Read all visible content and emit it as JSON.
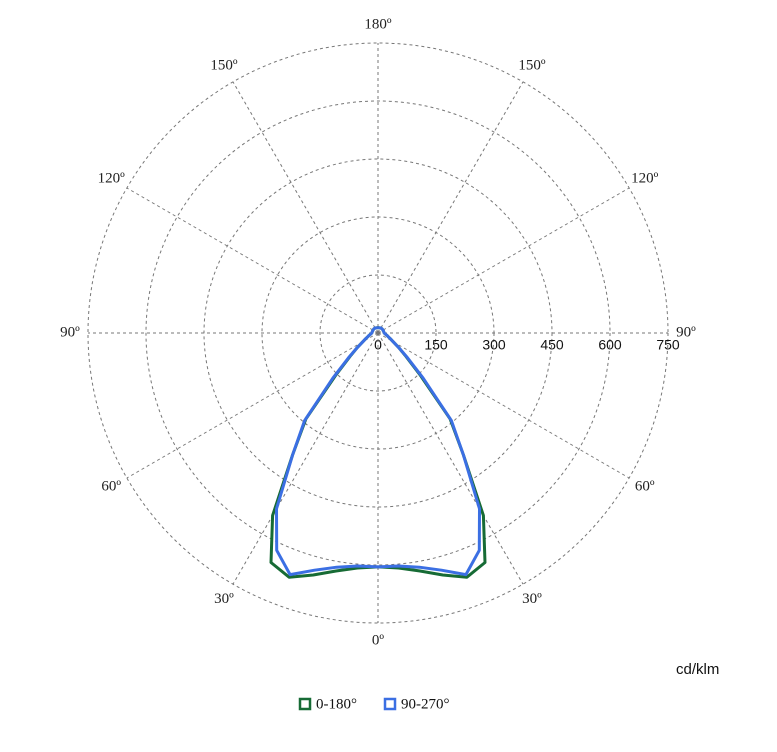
{
  "chart_data": {
    "type": "polar",
    "unit_label": "cd/klm",
    "angles": [
      0,
      5,
      10,
      15,
      20,
      25,
      30,
      35,
      40,
      45,
      50,
      55,
      60,
      65,
      70,
      75,
      80,
      85,
      90,
      105,
      120,
      135,
      150,
      165,
      180
    ],
    "series": [
      {
        "name": "0-180°",
        "color": "#176b35",
        "values": [
          605,
          610,
          625,
          648,
          672,
          655,
          545,
          385,
          290,
          155,
          95,
          65,
          45,
          35,
          28,
          24,
          20,
          18,
          16,
          15,
          15,
          15,
          15,
          14,
          14
        ]
      },
      {
        "name": "90-270°",
        "color": "#3b6fe3",
        "values": [
          605,
          605,
          615,
          635,
          665,
          620,
          525,
          385,
          295,
          165,
          100,
          65,
          45,
          35,
          28,
          24,
          20,
          18,
          16,
          15,
          15,
          15,
          15,
          14,
          14
        ]
      }
    ],
    "rlim": [
      0,
      750
    ],
    "rticks": [
      0,
      150,
      300,
      450,
      600,
      750
    ],
    "angle_ticks": [
      {
        "value": 0,
        "label": "0º"
      },
      {
        "value": 30,
        "label": "30º"
      },
      {
        "value": 60,
        "label": "60º"
      },
      {
        "value": 90,
        "label": "90º"
      },
      {
        "value": 120,
        "label": "120º"
      },
      {
        "value": 150,
        "label": "150º"
      },
      {
        "value": 180,
        "label": "180º"
      }
    ],
    "grid": true,
    "legend": "bottom"
  }
}
